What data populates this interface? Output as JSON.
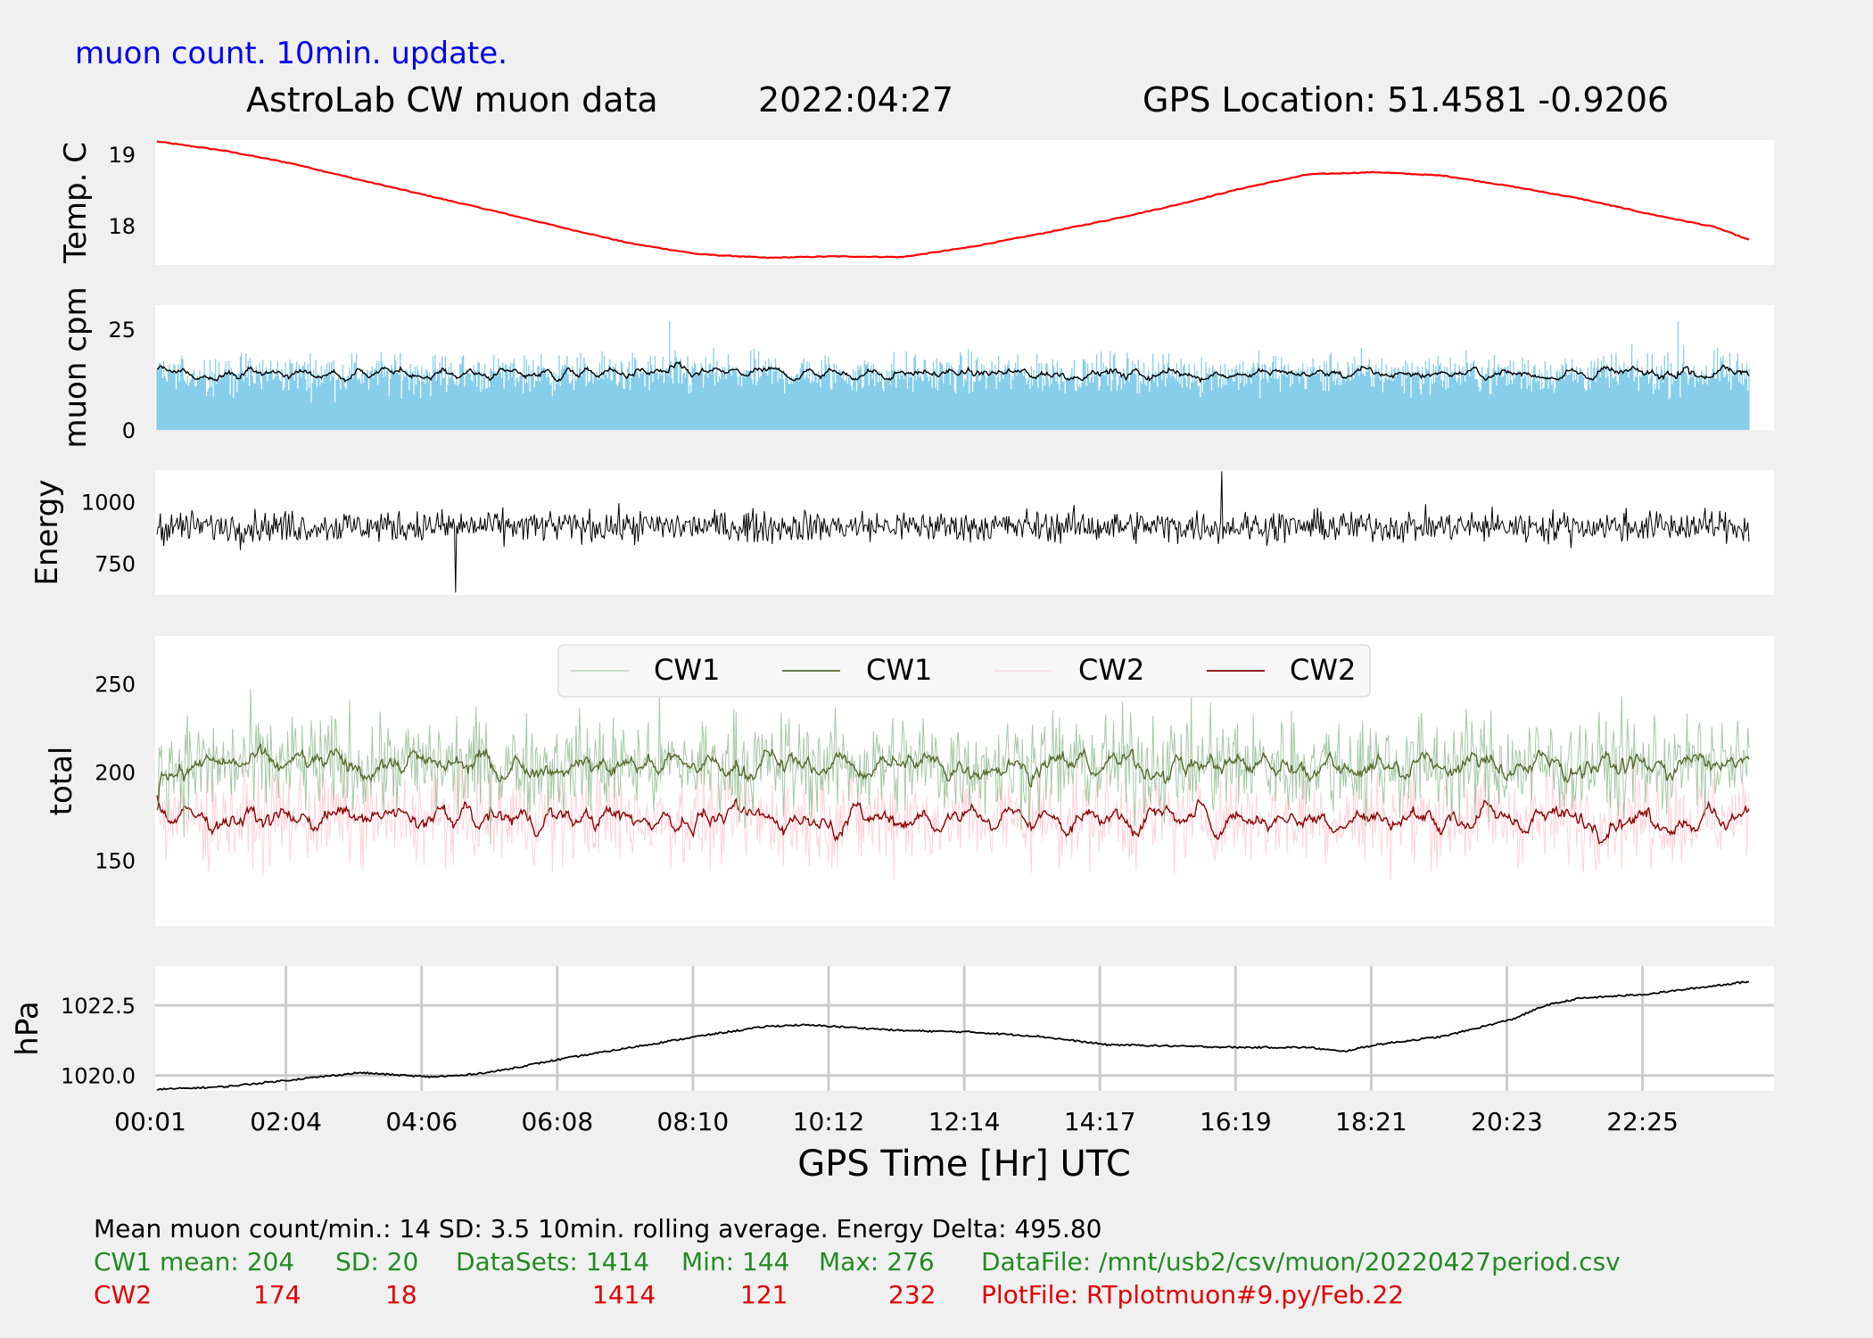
{
  "header": {
    "note": "muon count.  10min. update.",
    "title": "AstroLab CW muon data",
    "date": "2022:04:27",
    "gps": "GPS Location: 51.4581   -0.9206"
  },
  "colors": {
    "background": "#f0f0f0",
    "temp": "#ff0000",
    "muon_bars": "#87ceeb",
    "cw1_raw": "#8fbc8f",
    "cw1_avg": "#556b2f",
    "cw2_raw": "#ffc0cb",
    "cw2_avg": "#8b0000",
    "grid": "#cccccc"
  },
  "x_axis": {
    "label": "GPS Time  [Hr] UTC",
    "ticks": [
      "00:01",
      "02:04",
      "04:06",
      "06:08",
      "08:10",
      "10:12",
      "12:14",
      "14:17",
      "16:19",
      "18:21",
      "20:23",
      "22:25"
    ],
    "grid": "pressure panel only"
  },
  "chart_data": [
    {
      "id": "temperature",
      "type": "line",
      "ylabel": "Temp. C",
      "ylim": [
        17.45,
        19.2
      ],
      "yticks": [
        "18",
        "19"
      ],
      "ytick_values": [
        18,
        19
      ],
      "x_hours": [
        0.0,
        1.0,
        2.0,
        3.0,
        4.0,
        5.0,
        6.0,
        7.0,
        8.0,
        9.0,
        10.0,
        11.0,
        12.0,
        13.0,
        14.0,
        15.0,
        16.0,
        17.0,
        18.0,
        19.0,
        20.0,
        21.0,
        22.0,
        23.0,
        23.5
      ],
      "values": [
        19.18,
        19.05,
        18.87,
        18.64,
        18.42,
        18.2,
        17.97,
        17.75,
        17.6,
        17.55,
        17.57,
        17.56,
        17.7,
        17.88,
        18.07,
        18.28,
        18.52,
        18.72,
        18.75,
        18.7,
        18.55,
        18.38,
        18.17,
        17.98,
        17.8
      ],
      "color": "#ff0000"
    },
    {
      "id": "muon-cpm",
      "type": "bar",
      "ylabel": "muon cpm",
      "ylim": [
        0,
        31
      ],
      "yticks": [
        "0",
        "25"
      ],
      "ytick_values": [
        0,
        25
      ],
      "mean": 14,
      "sd": 3.5,
      "rolling_window": "10min.",
      "peak_values": [
        27,
        27
      ],
      "samples_shown": 1414
    },
    {
      "id": "energy",
      "type": "line",
      "ylabel": "Energy",
      "ylim": [
        620,
        1130
      ],
      "yticks": [
        "750",
        "1000"
      ],
      "ytick_values": [
        750,
        1000
      ],
      "typical_range": [
        800,
        1000
      ],
      "max": 1125,
      "min": 630,
      "delta": 495.8
    },
    {
      "id": "totals",
      "type": "line",
      "ylabel": "total",
      "ylim": [
        113,
        277
      ],
      "yticks": [
        "150",
        "200",
        "250"
      ],
      "ytick_values": [
        150,
        200,
        250
      ],
      "legend": "top-center",
      "series": [
        {
          "name": "CW1",
          "role": "raw",
          "mean": 204,
          "sd": 20,
          "min": 144,
          "max": 276,
          "color": "#8fbc8f"
        },
        {
          "name": "CW1",
          "role": "rolling average",
          "mean": 204,
          "color": "#556b2f"
        },
        {
          "name": "CW2",
          "role": "raw",
          "mean": 174,
          "sd": 18,
          "min": 121,
          "max": 232,
          "color": "#ffc0cb"
        },
        {
          "name": "CW2",
          "role": "rolling average",
          "mean": 174,
          "color": "#8b0000"
        }
      ]
    },
    {
      "id": "pressure",
      "type": "line",
      "ylabel": "hPa",
      "ylim": [
        1019.45,
        1023.9
      ],
      "yticks": [
        "1020.0",
        "1022.5"
      ],
      "ytick_values": [
        1020.0,
        1022.5
      ],
      "grid": true,
      "x_hours": [
        0.0,
        1.0,
        2.0,
        3.0,
        4.0,
        4.5,
        5.0,
        6.0,
        7.0,
        8.0,
        9.0,
        9.5,
        10.0,
        11.0,
        12.0,
        13.0,
        14.0,
        15.0,
        16.0,
        17.0,
        17.5,
        18.0,
        19.0,
        20.0,
        20.5,
        21.0,
        22.0,
        23.0,
        23.5
      ],
      "values": [
        1019.5,
        1019.6,
        1019.85,
        1020.1,
        1019.95,
        1020.0,
        1020.15,
        1020.6,
        1021.0,
        1021.4,
        1021.75,
        1021.8,
        1021.75,
        1021.6,
        1021.55,
        1021.4,
        1021.1,
        1021.05,
        1021.0,
        1021.0,
        1020.85,
        1021.1,
        1021.4,
        1022.0,
        1022.5,
        1022.75,
        1022.9,
        1023.2,
        1023.35
      ],
      "color": "#000000"
    }
  ],
  "stats": {
    "line1": "Mean muon count/min.: 14  SD: 3.5   10min. rolling average.    Energy Delta:  495.80",
    "cw1_row": {
      "label": "CW1 mean: 204",
      "sd": "SD: 20",
      "datasets": "DataSets: 1414",
      "min": "Min: 144",
      "max": "Max: 276",
      "file": "DataFile: /mnt/usb2/csv/muon/20220427period.csv"
    },
    "cw2_row": {
      "label": "CW2",
      "mean": "174",
      "sd": "18",
      "datasets": "1414",
      "min": "121",
      "max": "232",
      "file": "PlotFile: RTplotmuon#9.py/Feb.22"
    }
  }
}
